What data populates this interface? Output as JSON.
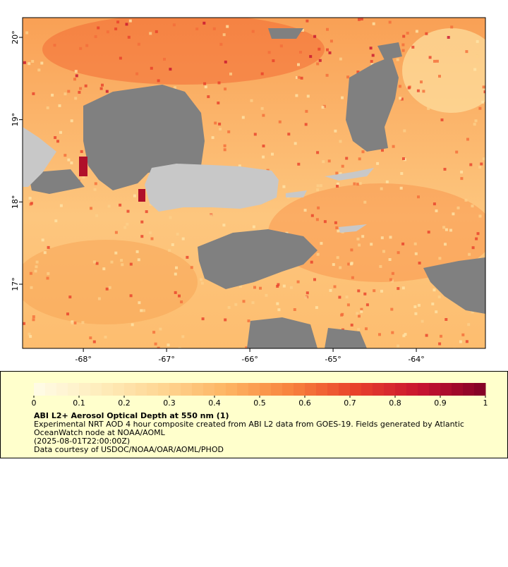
{
  "map": {
    "xlim": [
      -68.73,
      -63.17
    ],
    "ylim": [
      16.22,
      20.24
    ],
    "xticks": [
      {
        "value": -68,
        "label": "-68°"
      },
      {
        "value": -67,
        "label": "-67°"
      },
      {
        "value": -66,
        "label": "-66°"
      },
      {
        "value": -65,
        "label": "-65°"
      },
      {
        "value": -64,
        "label": "-64°"
      }
    ],
    "yticks": [
      {
        "value": 17,
        "label": "17°"
      },
      {
        "value": 18,
        "label": "18°"
      },
      {
        "value": 19,
        "label": "19°"
      },
      {
        "value": 20,
        "label": "20°"
      }
    ]
  },
  "colorbar": {
    "range": [
      0,
      1
    ],
    "ticks": [
      0,
      0.1,
      0.2,
      0.3,
      0.4,
      0.5,
      0.6,
      0.7,
      0.8,
      0.9,
      1
    ],
    "colors": [
      "#fffce8",
      "#feedbc",
      "#fed592",
      "#fdb462",
      "#f8823d",
      "#e8402b",
      "#c81330",
      "#800026"
    ]
  },
  "legend": {
    "title": "ABI L2+ Aerosol Optical Depth at 550 nm (1)",
    "lines": [
      "Experimental NRT AOD 4 hour composite created from ABI L2 data from GOES-19. Fields generated by Atlantic",
      "OceanWatch node at NOAA/AOML",
      "(2025-08-01T22:00:00Z)",
      "Data courtesy of USDOC/NOAA/OAR/AOML/PHOD"
    ]
  }
}
